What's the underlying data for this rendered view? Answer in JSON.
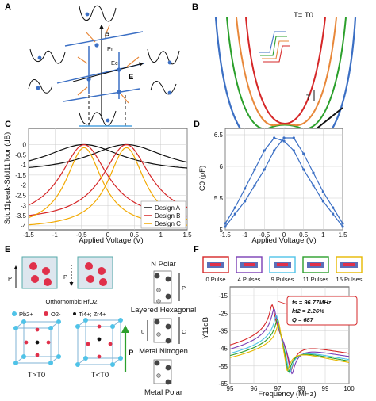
{
  "panels": {
    "a": {
      "label": "A",
      "symbols": {
        "p": "P",
        "pr": "Pr",
        "ec": "Ec",
        "e": "E"
      }
    },
    "b": {
      "label": "B",
      "temp": "T= T0",
      "t_arrow": "T",
      "f_axis": "F",
      "p_axis": "P"
    },
    "c": {
      "label": "C",
      "ylabel": "Sdd11peak-Sdd11floor (dB)",
      "xlabel": "Applied Voltage (V)"
    },
    "d": {
      "label": "D",
      "ylabel": "C0 (pF)",
      "xlabel": "Applied Voltage (V)"
    },
    "e": {
      "label": "E",
      "ortho": "Orthorhombic HfO2",
      "ions": [
        "Pb2+",
        "O2-",
        "Ti4+; Zr4+"
      ],
      "t_gt": "T>T0",
      "t_lt": "T<T0",
      "n_polar": "N Polar",
      "layered": "Layered Hexagonal",
      "metal_nitrogen": "Metal Nitrogen",
      "metal_polar": "Metal Polar",
      "p_left1": "P",
      "p_left2": "P",
      "p_arrow": "P",
      "p_side": "P",
      "u": "u",
      "c": "C"
    },
    "f": {
      "label": "F",
      "ylabel": "Y11dB",
      "xlabel": "Frequency (MHz)",
      "annot": {
        "fs": "fs = 96.77MHz",
        "k": "kt2 = 2.26%",
        "q": "Q = 687"
      },
      "pulses": [
        {
          "name": "0 Pulse",
          "color": "#d62728"
        },
        {
          "name": "4 Pulses",
          "color": "#7b3fb5"
        },
        {
          "name": "9 Pulses",
          "color": "#4fc3e8"
        },
        {
          "name": "11 Pulses",
          "color": "#2ca02c"
        },
        {
          "name": "15 Pulses",
          "color": "#e6b800"
        }
      ]
    }
  },
  "chart_data": [
    {
      "type": "line",
      "panel": "C",
      "xlabel": "Applied Voltage (V)",
      "ylabel": "Sdd11peak-Sdd11floor (dB)",
      "xlim": [
        -1.5,
        1.5
      ],
      "ylim": [
        -4.2,
        0.8
      ],
      "xticks": [
        -1.5,
        -1,
        -0.5,
        0,
        0.5,
        1,
        1.5
      ],
      "yticks": [
        0,
        -0.5,
        -1,
        -1.5,
        -2,
        -2.5,
        -3,
        -3.5,
        -4
      ],
      "legend": "bottom-right",
      "series": [
        {
          "name": "Design A",
          "color": "#111111",
          "peaks": [
            -0.45,
            0.35
          ],
          "peak": 0.0,
          "width": 0.9,
          "depth": 1.4
        },
        {
          "name": "Design B",
          "color": "#d62728",
          "peaks": [
            -0.45,
            0.35
          ],
          "peak": 0.0,
          "width": 0.55,
          "depth": 3.8
        },
        {
          "name": "Design C",
          "color": "#f2a900",
          "peaks": [
            -0.45,
            0.35
          ],
          "peak": -0.15,
          "width": 0.42,
          "depth": 4.0
        }
      ]
    },
    {
      "type": "line",
      "panel": "D",
      "xlabel": "Applied Voltage (V)",
      "ylabel": "C0 (pF)",
      "xlim": [
        -1.5,
        1.5
      ],
      "ylim": [
        5.0,
        6.6
      ],
      "xticks": [
        -1.5,
        -1,
        -0.5,
        0,
        0.5,
        1,
        1.5
      ],
      "yticks": [
        5,
        5.5,
        6,
        6.5
      ],
      "series": [
        {
          "name": "",
          "color": "#3b6fc4",
          "x": [
            -1.5,
            -1.25,
            -1.0,
            -0.75,
            -0.5,
            -0.25,
            0.0,
            0.25,
            0.5,
            0.75,
            1.0,
            1.25,
            1.5
          ],
          "y": [
            5.1,
            5.35,
            5.65,
            5.95,
            6.25,
            6.45,
            6.4,
            6.25,
            5.95,
            5.7,
            5.45,
            5.25,
            5.05
          ]
        },
        {
          "name": "",
          "color": "#3b6fc4",
          "x": [
            -1.5,
            -1.25,
            -1.0,
            -0.75,
            -0.5,
            -0.25,
            0.0,
            0.25,
            0.5,
            0.75,
            1.0,
            1.25,
            1.5
          ],
          "y": [
            5.05,
            5.25,
            5.45,
            5.7,
            5.95,
            6.25,
            6.45,
            6.45,
            6.2,
            5.9,
            5.6,
            5.35,
            5.1
          ]
        }
      ]
    },
    {
      "type": "line",
      "panel": "F",
      "xlabel": "Frequency (MHz)",
      "ylabel": "Y11dB",
      "xlim": [
        95,
        100
      ],
      "ylim": [
        -65,
        -10
      ],
      "xticks": [
        95,
        96,
        97,
        98,
        99,
        100
      ],
      "yticks": [
        -15,
        -25,
        -35,
        -45,
        -55,
        -65
      ],
      "series": [
        {
          "name": "0 Pulse",
          "color": "#d62728",
          "fs": 96.77,
          "fp": 97.55,
          "base": -38
        },
        {
          "name": "4 Pulses",
          "color": "#7b3fb5",
          "fs": 96.85,
          "fp": 97.6,
          "base": -40
        },
        {
          "name": "9 Pulses",
          "color": "#4fc3e8",
          "fs": 96.95,
          "fp": 97.5,
          "base": -42
        },
        {
          "name": "11 Pulses",
          "color": "#2ca02c",
          "fs": 97.0,
          "fp": 97.45,
          "base": -43
        },
        {
          "name": "15 Pulses",
          "color": "#e6b800",
          "fs": 97.05,
          "fp": 97.4,
          "base": -44
        }
      ]
    }
  ]
}
